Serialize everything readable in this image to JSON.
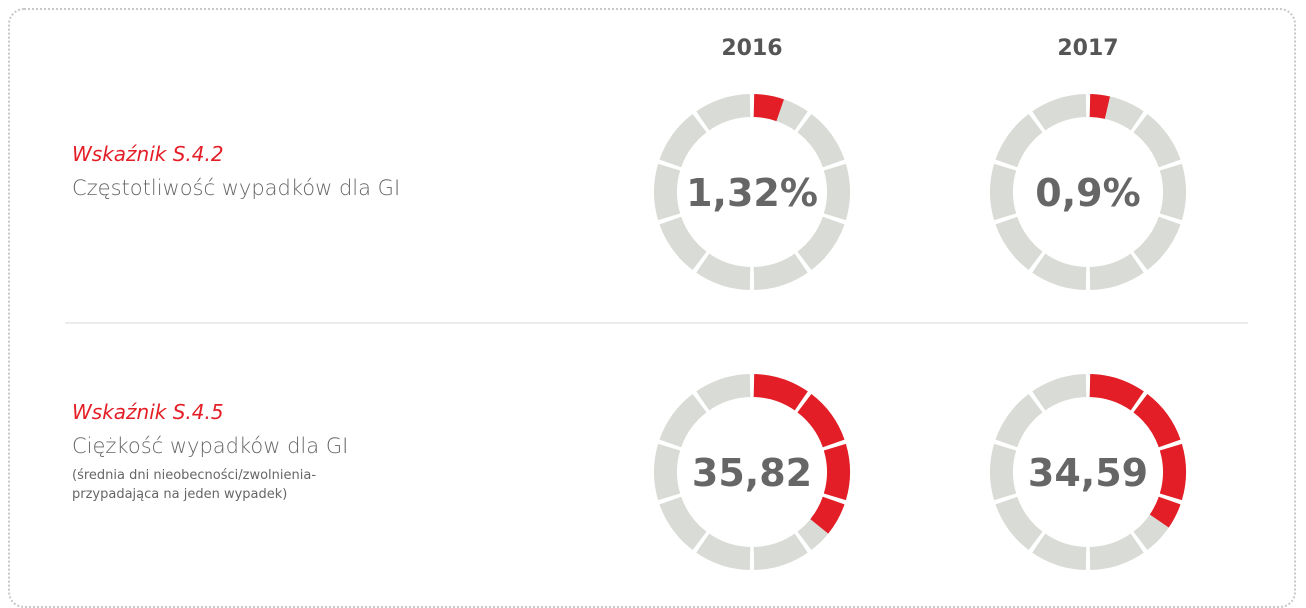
{
  "years": [
    "2016",
    "2017"
  ],
  "indicators": [
    {
      "code": "Wskaźnik S.4.2",
      "name": "Częstotliwość wypadków dla GI",
      "range": [
        0,
        25
      ],
      "values": [
        1.32,
        0.9
      ],
      "value_labels": [
        "1,32%",
        "0,9%"
      ]
    },
    {
      "code": "Wskaźnik S.4.5",
      "name": "Ciężkość wypadków dla GI",
      "note": "(średnia dni nieobecności/zwolnienia-przypadająca na jeden wypadek)",
      "range": [
        0,
        100
      ],
      "values": [
        35.82,
        34.59
      ],
      "value_labels": [
        "35,82",
        "34,59"
      ]
    }
  ]
}
